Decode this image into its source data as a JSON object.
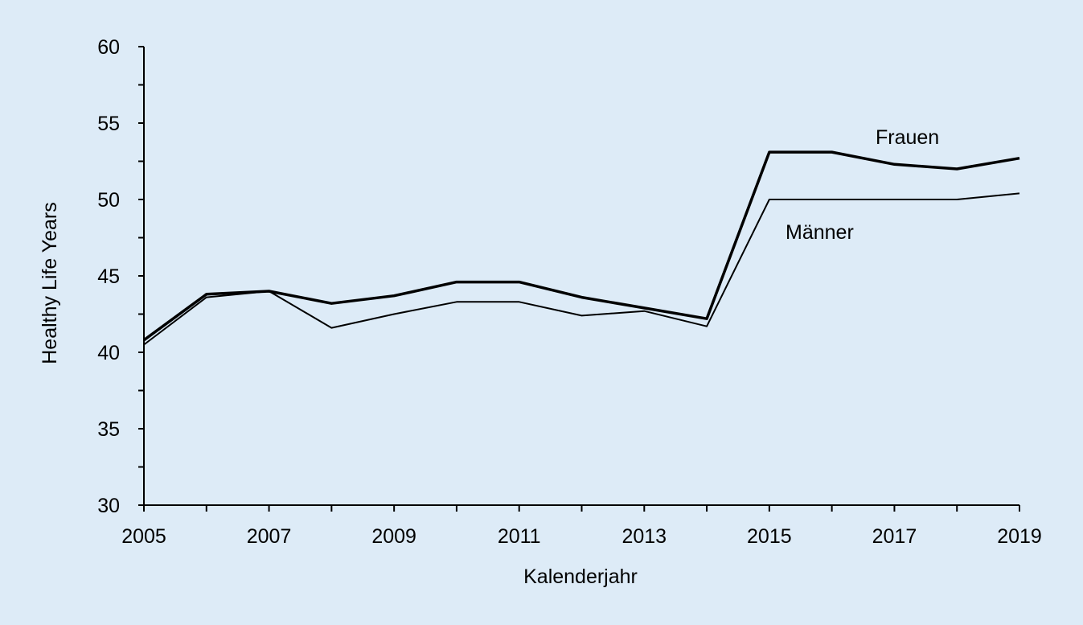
{
  "chart_data": {
    "type": "line",
    "xlabel": "Kalenderjahr",
    "ylabel": "Healthy Life Years",
    "xlim": [
      2005,
      2019
    ],
    "ylim": [
      30,
      60
    ],
    "x_ticks": [
      2005,
      2007,
      2009,
      2011,
      2013,
      2015,
      2017,
      2019
    ],
    "x_tick_labels": [
      "2005",
      "2007",
      "2009",
      "2011",
      "2013",
      "2015",
      "2017",
      "2019"
    ],
    "y_ticks": [
      30,
      35,
      40,
      45,
      50,
      55,
      60
    ],
    "y_tick_labels": [
      "30",
      "35",
      "40",
      "45",
      "50",
      "55",
      "60"
    ],
    "grid": false,
    "legend": "none",
    "x": [
      2005,
      2006,
      2007,
      2008,
      2009,
      2010,
      2011,
      2012,
      2013,
      2014,
      2015,
      2016,
      2017,
      2018,
      2019
    ],
    "series": [
      {
        "name": "Frauen",
        "color": "#000000",
        "values": [
          40.8,
          43.8,
          44.0,
          43.2,
          43.7,
          44.6,
          44.6,
          43.6,
          42.9,
          42.2,
          53.1,
          53.1,
          52.3,
          52.0,
          52.7
        ]
      },
      {
        "name": "Männer",
        "color": "#000000",
        "values": [
          40.5,
          43.6,
          44.0,
          41.6,
          42.5,
          43.3,
          43.3,
          42.4,
          42.7,
          41.7,
          50.0,
          50.0,
          50.0,
          50.0,
          50.4
        ]
      }
    ]
  }
}
